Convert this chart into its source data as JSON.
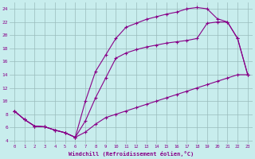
{
  "xlabel": "Windchill (Refroidissement éolien,°C)",
  "background_color": "#c8eded",
  "line_color": "#880088",
  "grid_color": "#99bbbb",
  "xlim": [
    -0.5,
    23.5
  ],
  "ylim": [
    3.5,
    25.0
  ],
  "xticks": [
    0,
    1,
    2,
    3,
    4,
    5,
    6,
    7,
    8,
    9,
    10,
    11,
    12,
    13,
    14,
    15,
    16,
    17,
    18,
    19,
    20,
    21,
    22,
    23
  ],
  "yticks": [
    4,
    6,
    8,
    10,
    12,
    14,
    16,
    18,
    20,
    22,
    24
  ],
  "line1_x": [
    0,
    1,
    2,
    3,
    4,
    5,
    6,
    7,
    8,
    9,
    10,
    11,
    12,
    13,
    14,
    15,
    16,
    17,
    18,
    19,
    20,
    21,
    22,
    23
  ],
  "line1_y": [
    8.5,
    7.2,
    6.2,
    6.1,
    5.6,
    5.2,
    4.5,
    5.3,
    6.5,
    7.5,
    8.0,
    8.5,
    9.0,
    9.5,
    10.0,
    10.5,
    11.0,
    11.5,
    12.0,
    12.5,
    13.0,
    13.5,
    14.0,
    14.0
  ],
  "line2_x": [
    0,
    1,
    2,
    3,
    4,
    5,
    6,
    7,
    8,
    9,
    10,
    11,
    12,
    13,
    14,
    15,
    16,
    17,
    18,
    19,
    20,
    21,
    22,
    23
  ],
  "line2_y": [
    8.5,
    7.2,
    6.2,
    6.1,
    5.6,
    5.2,
    4.5,
    10.0,
    14.5,
    17.0,
    19.5,
    21.2,
    21.8,
    22.4,
    22.8,
    23.2,
    23.5,
    24.0,
    24.2,
    24.0,
    22.5,
    22.0,
    19.5,
    14.0
  ],
  "line3_x": [
    0,
    1,
    2,
    3,
    4,
    5,
    6,
    7,
    8,
    9,
    10,
    11,
    12,
    13,
    14,
    15,
    16,
    17,
    18,
    19,
    20,
    21,
    22,
    23
  ],
  "line3_y": [
    8.5,
    7.2,
    6.2,
    6.1,
    5.6,
    5.2,
    4.5,
    7.0,
    10.5,
    13.5,
    16.5,
    17.3,
    17.8,
    18.2,
    18.5,
    18.8,
    19.0,
    19.2,
    19.5,
    21.8,
    22.0,
    22.0,
    19.5,
    14.0
  ]
}
